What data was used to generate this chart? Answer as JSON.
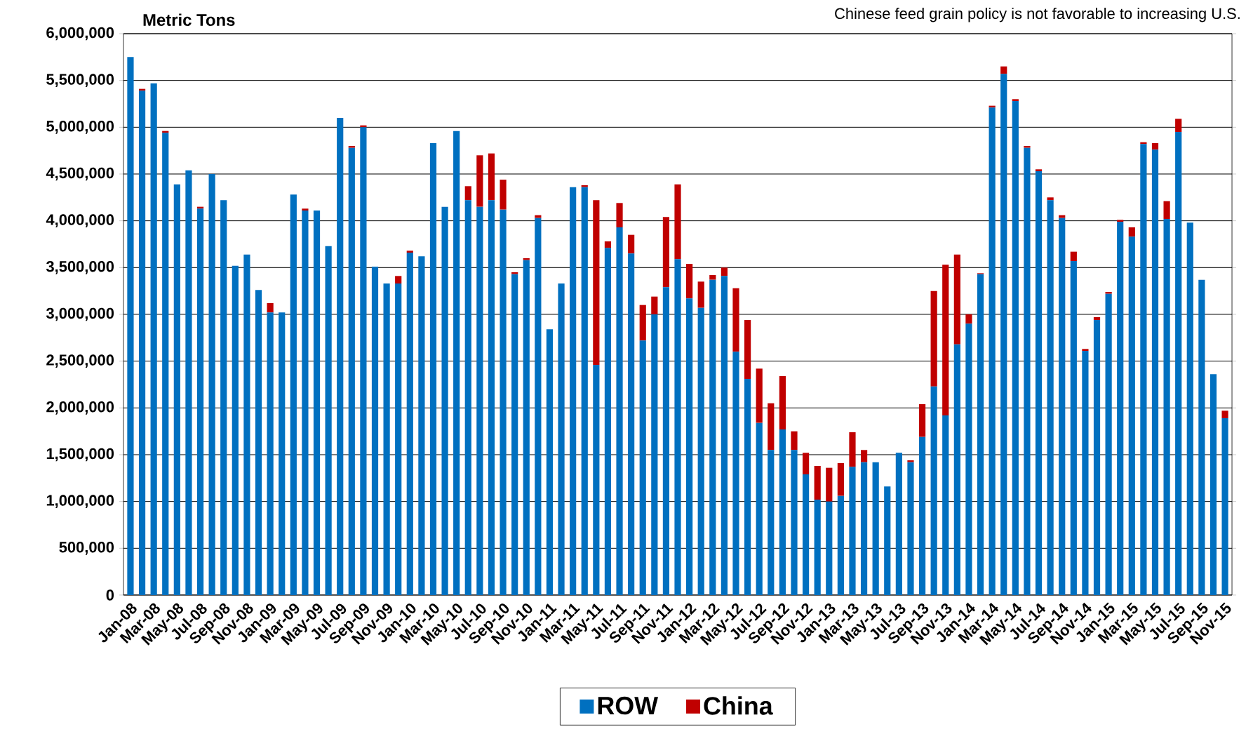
{
  "chart_data": {
    "type": "bar",
    "stacked": true,
    "ylabel": "Metric Tons",
    "annotations": [
      "Chinese feed grain policy is not favorable to increasing U.S."
    ],
    "categories": [
      "Jan-08",
      null,
      "Mar-08",
      null,
      "May-08",
      null,
      "Jul-08",
      null,
      "Sep-08",
      null,
      "Nov-08",
      null,
      "Jan-09",
      null,
      "Mar-09",
      null,
      "May-09",
      null,
      "Jul-09",
      null,
      "Sep-09",
      null,
      "Nov-09",
      null,
      "Jan-10",
      null,
      "Mar-10",
      null,
      "May-10",
      null,
      "Jul-10",
      null,
      "Sep-10",
      null,
      "Nov-10",
      null,
      "Jan-11",
      null,
      "Mar-11",
      null,
      "May-11",
      null,
      "Jul-11",
      null,
      "Sep-11",
      null,
      "Nov-11",
      null,
      "Jan-12",
      null,
      "Mar-12",
      null,
      "May-12",
      null,
      "Jul-12",
      null,
      "Sep-12",
      null,
      "Nov-12",
      null,
      "Jan-13",
      null,
      "Mar-13",
      null,
      "May-13",
      null,
      "Jul-13",
      null,
      "Sep-13",
      null,
      "Nov-13",
      null,
      "Jan-14",
      null,
      "Mar-14",
      null,
      "May-14",
      null,
      "Jul-14",
      null,
      "Sep-14",
      null,
      "Nov-14",
      null,
      "Jan-15",
      null,
      "Mar-15",
      null,
      "May-15",
      null,
      "Jul-15",
      null,
      "Sep-15",
      null,
      "Nov-15"
    ],
    "series": [
      {
        "name": "ROW",
        "color": "#0070c0",
        "values": [
          5750000,
          5390000,
          5470000,
          4940000,
          4390000,
          4540000,
          4130000,
          4500000,
          4220000,
          3520000,
          3640000,
          3260000,
          3020000,
          3020000,
          4280000,
          4110000,
          4110000,
          3730000,
          5100000,
          4780000,
          5000000,
          3510000,
          3330000,
          3330000,
          3660000,
          3620000,
          4830000,
          4150000,
          4960000,
          4220000,
          4150000,
          4220000,
          4120000,
          3430000,
          3580000,
          4030000,
          2840000,
          3330000,
          4360000,
          4360000,
          2460000,
          3710000,
          3930000,
          3650000,
          2720000,
          3000000,
          3290000,
          3590000,
          3170000,
          3070000,
          3370000,
          3410000,
          2600000,
          2310000,
          1840000,
          1550000,
          1770000,
          1550000,
          1290000,
          1020000,
          1000000,
          1060000,
          1370000,
          1420000,
          1420000,
          1160000,
          1520000,
          1420000,
          1690000,
          2230000,
          1920000,
          2680000,
          2900000,
          3430000,
          5210000,
          5570000,
          5280000,
          4780000,
          4530000,
          4220000,
          4030000,
          3570000,
          2610000,
          2940000,
          3220000,
          3990000,
          3830000,
          4820000,
          4760000,
          4020000,
          4950000,
          3980000,
          3370000,
          2360000,
          1890000
        ]
      },
      {
        "name": "China",
        "color": "#c00000",
        "values": [
          0,
          20000,
          0,
          20000,
          0,
          0,
          20000,
          0,
          0,
          0,
          0,
          0,
          100000,
          0,
          0,
          20000,
          0,
          0,
          0,
          20000,
          20000,
          0,
          0,
          80000,
          20000,
          0,
          0,
          0,
          0,
          150000,
          550000,
          500000,
          320000,
          20000,
          20000,
          30000,
          0,
          0,
          0,
          20000,
          1760000,
          70000,
          260000,
          200000,
          380000,
          190000,
          750000,
          800000,
          370000,
          280000,
          50000,
          90000,
          680000,
          630000,
          580000,
          500000,
          570000,
          200000,
          230000,
          360000,
          360000,
          350000,
          370000,
          130000,
          0,
          0,
          0,
          20000,
          350000,
          1020000,
          1610000,
          960000,
          100000,
          10000,
          20000,
          80000,
          20000,
          20000,
          20000,
          30000,
          30000,
          100000,
          20000,
          30000,
          20000,
          20000,
          100000,
          20000,
          70000,
          190000,
          140000,
          0,
          0,
          0,
          80000
        ]
      }
    ],
    "ylim": [
      0,
      6000000
    ],
    "yticks": [
      {
        "value": 0,
        "label": "0"
      },
      {
        "value": 500000,
        "label": "500,000"
      },
      {
        "value": 1000000,
        "label": "1,000,000"
      },
      {
        "value": 1500000,
        "label": "1,500,000"
      },
      {
        "value": 2000000,
        "label": "2,000,000"
      },
      {
        "value": 2500000,
        "label": "2,500,000"
      },
      {
        "value": 3000000,
        "label": "3,000,000"
      },
      {
        "value": 3500000,
        "label": "3,500,000"
      },
      {
        "value": 4000000,
        "label": "4,000,000"
      },
      {
        "value": 4500000,
        "label": "4,500,000"
      },
      {
        "value": 5000000,
        "label": "5,000,000"
      },
      {
        "value": 5500000,
        "label": "5,500,000"
      },
      {
        "value": 6000000,
        "label": "6,000,000"
      }
    ],
    "grid": "y",
    "legend": "bottom"
  }
}
